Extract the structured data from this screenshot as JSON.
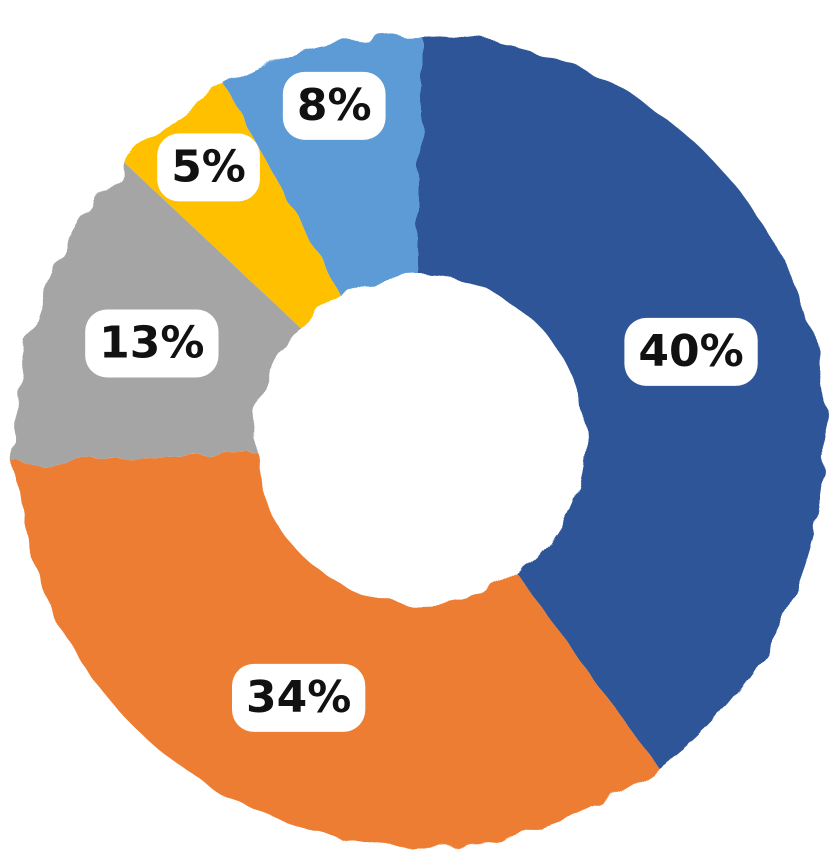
{
  "chart_data": {
    "type": "donut",
    "values": [
      40,
      34,
      13,
      5,
      8
    ],
    "value_labels": [
      "40%",
      "34%",
      "13%",
      "5%",
      "8%"
    ],
    "colors": [
      "#2f5597",
      "#ed7d31",
      "#a5a5a5",
      "#ffc000",
      "#5b9bd5"
    ]
  }
}
